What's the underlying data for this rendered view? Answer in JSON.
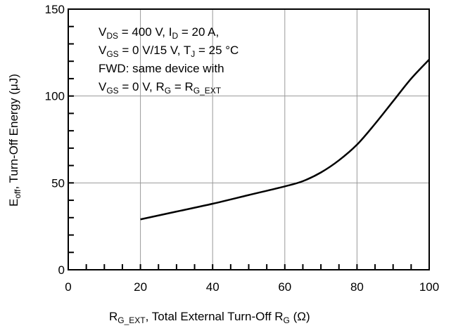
{
  "chart_data": {
    "type": "line",
    "x_ticks": [
      "0",
      "20",
      "40",
      "60",
      "80",
      "100"
    ],
    "y_ticks": [
      "0",
      "50",
      "100",
      "150"
    ],
    "xlim": [
      0,
      100
    ],
    "ylim": [
      0,
      150
    ],
    "grid": true,
    "series": [
      {
        "x": [
          20,
          30,
          40,
          50,
          60,
          65,
          70,
          75,
          80,
          85,
          90,
          95,
          100
        ],
        "y": [
          29,
          33.5,
          38,
          43,
          48,
          51,
          56,
          63,
          72,
          84,
          97,
          110,
          121
        ]
      }
    ],
    "xlabel": {
      "part1": "R",
      "sub1": "G_EXT",
      "part2": ", Total External Turn-Off R",
      "sub2": "G",
      "part3": " (Ω)"
    },
    "ylabel": {
      "part1": "E",
      "sub1": "off",
      "part2": ", Turn-Off Energy (μJ)"
    },
    "annotation": {
      "line1": {
        "a": "V",
        "a_sub": "DS",
        "b": " = 400 V, I",
        "b_sub": "D",
        "c": " = 20 A,"
      },
      "line2": {
        "a": "V",
        "a_sub": "GS",
        "b": " = 0 V/15 V, T",
        "b_sub": "J",
        "c": " = 25 °C"
      },
      "line3": {
        "a": "FWD: same device with"
      },
      "line4": {
        "a": "V",
        "a_sub": "GS",
        "b": " = 0 V, R",
        "b_sub": "G",
        "c": " = R",
        "c_sub": "G_EXT"
      }
    },
    "line_color": "#000000",
    "grid_color": "#9a9a9a"
  }
}
